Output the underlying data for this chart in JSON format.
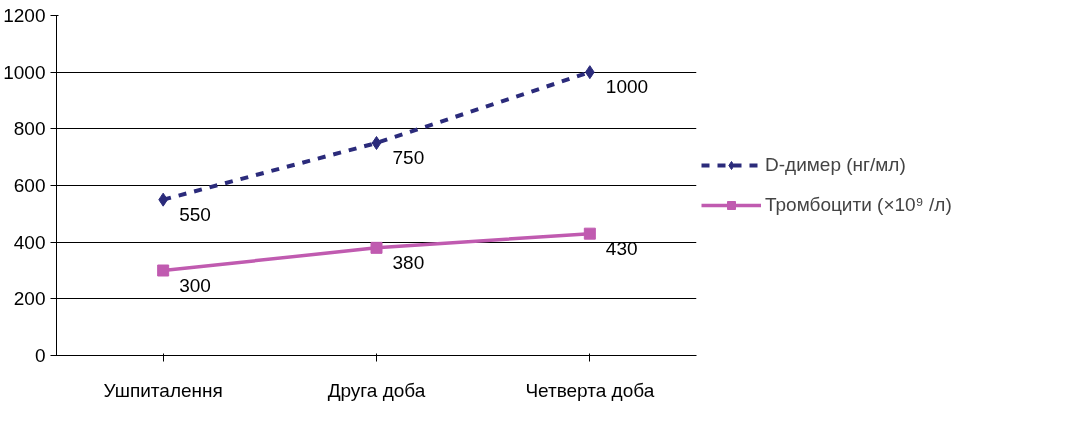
{
  "chart_data": {
    "type": "line",
    "categories": [
      "Ушпиталення",
      "Друга доба",
      "Четверта доба"
    ],
    "series": [
      {
        "name": "D-димер (нг/мл)",
        "color": "#2b2b7b",
        "values": [
          550,
          750,
          1000
        ],
        "line_style": "dashed",
        "marker": "diamond"
      },
      {
        "name": "Тромбоцити (×10⁹ /л)",
        "color": "#c05bb0",
        "values": [
          300,
          380,
          430
        ],
        "line_style": "solid",
        "marker": "square"
      }
    ],
    "ylim": [
      0,
      1200
    ],
    "yticks": [
      0,
      200,
      400,
      600,
      800,
      1000,
      1200
    ],
    "grid": "y",
    "legend": "right",
    "data_labels": true
  }
}
